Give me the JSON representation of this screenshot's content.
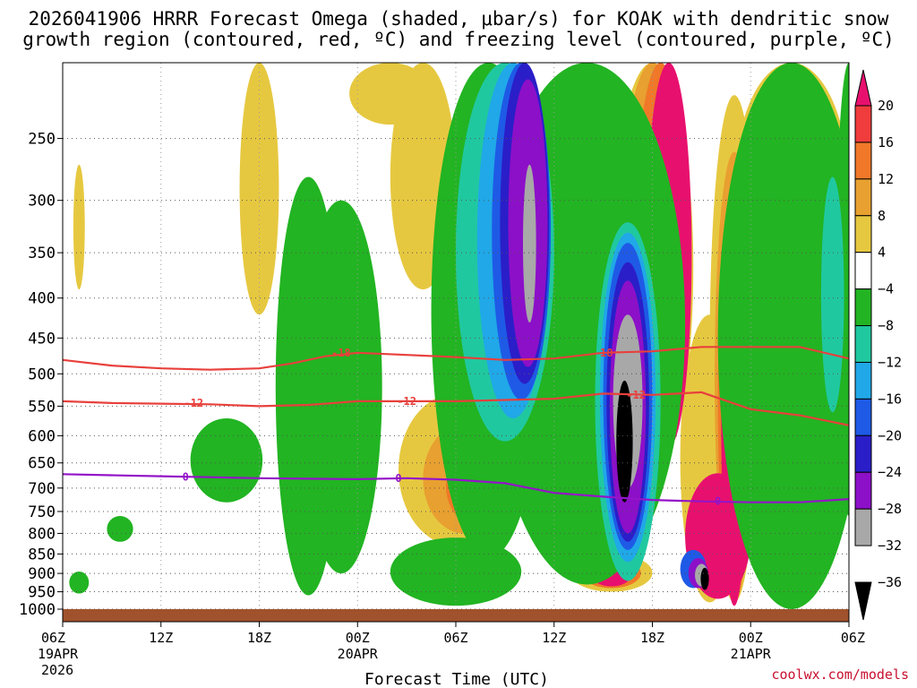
{
  "chart_data": {
    "type": "heatmap",
    "title_line1": "2026041906 HRRR Forecast Omega (shaded, μbar/s) for KOAK with dendritic snow",
    "title_line2": "growth region (contoured, red, ºC) and freezing level (contoured, purple, ºC)",
    "xlabel": "Forecast Time (UTC)",
    "credit": "coolwx.com/models",
    "x_ticks": [
      {
        "hour": 0,
        "label": "06Z",
        "sub1": "19APR",
        "sub2": "2026"
      },
      {
        "hour": 6,
        "label": "12Z"
      },
      {
        "hour": 12,
        "label": "18Z"
      },
      {
        "hour": 18,
        "label": "00Z",
        "sub1": "20APR"
      },
      {
        "hour": 24,
        "label": "06Z"
      },
      {
        "hour": 30,
        "label": "12Z"
      },
      {
        "hour": 36,
        "label": "18Z"
      },
      {
        "hour": 42,
        "label": "00Z",
        "sub1": "21APR"
      },
      {
        "hour": 48,
        "label": "06Z"
      }
    ],
    "xlim": [
      0,
      48
    ],
    "y_ticks": [
      250,
      300,
      350,
      400,
      450,
      500,
      550,
      600,
      650,
      700,
      750,
      800,
      850,
      900,
      950,
      1000
    ],
    "ylim_hpa": [
      200,
      1000
    ],
    "colorbar": {
      "ticks": [
        "20",
        "16",
        "12",
        "8",
        "4",
        "−4",
        "−8",
        "−12",
        "−16",
        "−20",
        "−24",
        "−28",
        "−32",
        "−36"
      ],
      "colors": [
        "#e8106e",
        "#f03c3c",
        "#f07828",
        "#e8a030",
        "#e6c840",
        "#ffffff",
        "#22b422",
        "#20c8a0",
        "#20a8e8",
        "#1e5ae6",
        "#2a1ec8",
        "#8c10c8",
        "#a8a8a8",
        "#000000"
      ]
    },
    "contours": [
      {
        "name": "dgz-minus18",
        "color": "#e8403c",
        "label": "-18",
        "points": [
          [
            0,
            480
          ],
          [
            3,
            488
          ],
          [
            6,
            492
          ],
          [
            9,
            494
          ],
          [
            12,
            492
          ],
          [
            14,
            485
          ],
          [
            16,
            475
          ],
          [
            18,
            470
          ],
          [
            21,
            473
          ],
          [
            24,
            476
          ],
          [
            27,
            480
          ],
          [
            30,
            478
          ],
          [
            33,
            470
          ],
          [
            36,
            468
          ],
          [
            39,
            462
          ],
          [
            42,
            462
          ],
          [
            45,
            462
          ],
          [
            48,
            478
          ]
        ],
        "label_at": [
          [
            17,
            470
          ],
          [
            33,
            470
          ]
        ]
      },
      {
        "name": "dgz-minus12",
        "color": "#e8403c",
        "label": "-12",
        "points": [
          [
            0,
            542
          ],
          [
            3,
            545
          ],
          [
            6,
            546
          ],
          [
            9,
            547
          ],
          [
            12,
            550
          ],
          [
            15,
            548
          ],
          [
            18,
            542
          ],
          [
            21,
            542
          ],
          [
            24,
            542
          ],
          [
            27,
            540
          ],
          [
            30,
            538
          ],
          [
            33,
            530
          ],
          [
            36,
            532
          ],
          [
            39,
            528
          ],
          [
            42,
            555
          ],
          [
            45,
            565
          ],
          [
            48,
            582
          ]
        ],
        "label_at": [
          [
            8,
            545
          ],
          [
            21,
            542
          ],
          [
            35,
            532
          ]
        ]
      },
      {
        "name": "freezing-level-0",
        "color": "#9414c8",
        "label": "0",
        "points": [
          [
            0,
            672
          ],
          [
            3,
            674
          ],
          [
            6,
            676
          ],
          [
            9,
            678
          ],
          [
            12,
            680
          ],
          [
            15,
            681
          ],
          [
            18,
            682
          ],
          [
            21,
            680
          ],
          [
            24,
            683
          ],
          [
            27,
            690
          ],
          [
            30,
            710
          ],
          [
            33,
            718
          ],
          [
            36,
            725
          ],
          [
            39,
            728
          ],
          [
            42,
            730
          ],
          [
            45,
            730
          ],
          [
            48,
            723
          ]
        ],
        "label_at": [
          [
            7.5,
            678
          ],
          [
            20.5,
            680
          ],
          [
            40,
            728
          ]
        ]
      }
    ],
    "shaded_blobs": [
      {
        "v": 4,
        "cx": 1,
        "cy": 330,
        "rx": 0.35,
        "ry": 60
      },
      {
        "v": 4,
        "cx": 12,
        "cy": 300,
        "rx": 1.2,
        "ry": 120
      },
      {
        "v": 4,
        "cx": 20,
        "cy": 130,
        "rx": 2.5,
        "ry": 110
      },
      {
        "v": 4,
        "cx": 22,
        "cy": 270,
        "rx": 2.0,
        "ry": 120
      },
      {
        "v": 4,
        "cx": 24,
        "cy": 680,
        "rx": 3.5,
        "ry": 150
      },
      {
        "v": 8,
        "cx": 24.5,
        "cy": 690,
        "rx": 2.5,
        "ry": 110
      },
      {
        "v": 12,
        "cx": 25,
        "cy": 700,
        "rx": 1.6,
        "ry": 75
      },
      {
        "v": 16,
        "cx": 25.2,
        "cy": 705,
        "rx": 0.8,
        "ry": 40
      },
      {
        "v": 4,
        "cx": 44.5,
        "cy": 260,
        "rx": 3.5,
        "ry": 160
      },
      {
        "v": 8,
        "cx": 44.5,
        "cy": 280,
        "rx": 2.0,
        "ry": 110
      },
      {
        "v": 4,
        "cx": 45,
        "cy": 690,
        "rx": 3.0,
        "ry": 190
      },
      {
        "v": 8,
        "cx": 45,
        "cy": 730,
        "rx": 2.2,
        "ry": 150
      },
      {
        "v": 12,
        "cx": 45,
        "cy": 760,
        "rx": 1.8,
        "ry": 130
      },
      {
        "v": 20,
        "cx": 44.5,
        "cy": 800,
        "rx": 1.8,
        "ry": 160
      },
      {
        "v": 4,
        "cx": 36,
        "cy": 420,
        "rx": 2.5,
        "ry": 250
      },
      {
        "v": 8,
        "cx": 36,
        "cy": 400,
        "rx": 2.0,
        "ry": 240
      },
      {
        "v": 12,
        "cx": 36.5,
        "cy": 380,
        "rx": 1.6,
        "ry": 240
      },
      {
        "v": 20,
        "cx": 37,
        "cy": 380,
        "rx": 1.4,
        "ry": 240
      },
      {
        "v": 4,
        "cx": 41,
        "cy": 600,
        "rx": 1.5,
        "ry": 380
      },
      {
        "v": 8,
        "cx": 41,
        "cy": 620,
        "rx": 1.2,
        "ry": 360
      },
      {
        "v": 12,
        "cx": 41,
        "cy": 640,
        "rx": 1.0,
        "ry": 340
      },
      {
        "v": 20,
        "cx": 41,
        "cy": 660,
        "rx": 0.8,
        "ry": 330
      },
      {
        "v": 4,
        "cx": 39.5,
        "cy": 700,
        "rx": 1.8,
        "ry": 280
      },
      {
        "v": 20,
        "cx": 40,
        "cy": 820,
        "rx": 2.0,
        "ry": 150
      },
      {
        "v": 4,
        "cx": 33.5,
        "cy": 900,
        "rx": 2.5,
        "ry": 50
      },
      {
        "v": 12,
        "cx": 33.5,
        "cy": 900,
        "rx": 1.8,
        "ry": 40
      },
      {
        "v": 20,
        "cx": 33.5,
        "cy": 905,
        "rx": 1.2,
        "ry": 30
      },
      {
        "v": -8,
        "cx": 15,
        "cy": 620,
        "rx": 2.0,
        "ry": 340
      },
      {
        "v": -8,
        "cx": 10,
        "cy": 650,
        "rx": 2.2,
        "ry": 80
      },
      {
        "v": -8,
        "cx": 3.5,
        "cy": 790,
        "rx": 0.8,
        "ry": 30
      },
      {
        "v": -8,
        "cx": 1,
        "cy": 925,
        "rx": 0.6,
        "ry": 30
      },
      {
        "v": -8,
        "cx": 17,
        "cy": 600,
        "rx": 2.5,
        "ry": 300
      },
      {
        "v": -8,
        "cx": 24,
        "cy": 900,
        "rx": 4.0,
        "ry": 90
      },
      {
        "v": -8,
        "cx": 26,
        "cy": 480,
        "rx": 3.5,
        "ry": 380
      },
      {
        "v": -8,
        "cx": 32,
        "cy": 450,
        "rx": 6.0,
        "ry": 480
      },
      {
        "v": -8,
        "cx": 44.5,
        "cy": 600,
        "rx": 4.5,
        "ry": 400
      },
      {
        "v": -8,
        "cx": 48,
        "cy": 460,
        "rx": 0.8,
        "ry": 300
      },
      {
        "v": -12,
        "cx": 27,
        "cy": 380,
        "rx": 3.0,
        "ry": 230
      },
      {
        "v": -12,
        "cx": 34.5,
        "cy": 620,
        "rx": 2.0,
        "ry": 300
      },
      {
        "v": -12,
        "cx": 47,
        "cy": 420,
        "rx": 0.7,
        "ry": 140
      },
      {
        "v": -16,
        "cx": 27.5,
        "cy": 370,
        "rx": 2.2,
        "ry": 200
      },
      {
        "v": -16,
        "cx": 34.5,
        "cy": 600,
        "rx": 1.7,
        "ry": 270
      },
      {
        "v": -20,
        "cx": 28,
        "cy": 360,
        "rx": 1.8,
        "ry": 180
      },
      {
        "v": -20,
        "cx": 34.5,
        "cy": 590,
        "rx": 1.5,
        "ry": 250
      },
      {
        "v": -20,
        "cx": 38.5,
        "cy": 890,
        "rx": 0.8,
        "ry": 50
      },
      {
        "v": -24,
        "cx": 28.2,
        "cy": 355,
        "rx": 1.5,
        "ry": 160
      },
      {
        "v": -24,
        "cx": 34.5,
        "cy": 590,
        "rx": 1.3,
        "ry": 230
      },
      {
        "v": -28,
        "cx": 28.4,
        "cy": 350,
        "rx": 1.2,
        "ry": 140
      },
      {
        "v": -28,
        "cx": 34.5,
        "cy": 590,
        "rx": 1.1,
        "ry": 210
      },
      {
        "v": -28,
        "cx": 38.8,
        "cy": 900,
        "rx": 0.6,
        "ry": 40
      },
      {
        "v": -32,
        "cx": 28.5,
        "cy": 350,
        "rx": 0.4,
        "ry": 80
      },
      {
        "v": -32,
        "cx": 34.5,
        "cy": 560,
        "rx": 0.9,
        "ry": 140
      },
      {
        "v": -32,
        "cx": 39,
        "cy": 905,
        "rx": 0.4,
        "ry": 30
      },
      {
        "v": -36,
        "cx": 34.3,
        "cy": 620,
        "rx": 0.5,
        "ry": 110
      },
      {
        "v": -36,
        "cx": 39.2,
        "cy": 915,
        "rx": 0.25,
        "ry": 30
      }
    ]
  }
}
